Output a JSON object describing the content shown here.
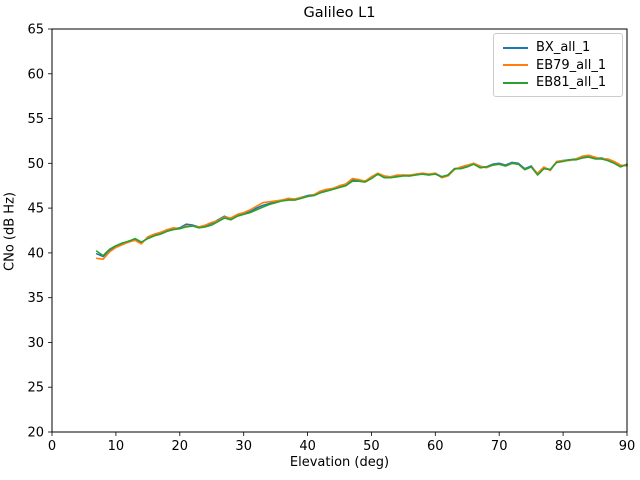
{
  "chart_data": {
    "type": "line",
    "title": "Galileo L1",
    "xlabel": "Elevation (deg)",
    "ylabel": "CNo (dB Hz)",
    "xlim": [
      0,
      90
    ],
    "ylim": [
      20,
      65
    ],
    "xticks": [
      0,
      10,
      20,
      30,
      40,
      50,
      60,
      70,
      80,
      90
    ],
    "yticks": [
      20,
      25,
      30,
      35,
      40,
      45,
      50,
      55,
      60,
      65
    ],
    "grid": false,
    "legend_position": "upper right",
    "x": [
      7,
      8,
      9,
      10,
      11,
      12,
      13,
      14,
      15,
      16,
      17,
      18,
      19,
      20,
      21,
      22,
      23,
      24,
      25,
      26,
      27,
      28,
      29,
      30,
      31,
      32,
      33,
      34,
      35,
      36,
      37,
      38,
      39,
      40,
      41,
      42,
      43,
      44,
      45,
      46,
      47,
      48,
      49,
      50,
      51,
      52,
      53,
      54,
      55,
      56,
      57,
      58,
      59,
      60,
      61,
      62,
      63,
      64,
      65,
      66,
      67,
      68,
      69,
      70,
      71,
      72,
      73,
      74,
      75,
      76,
      77,
      78,
      79,
      80,
      81,
      82,
      83,
      84,
      85,
      86,
      87,
      88,
      89,
      90
    ],
    "series": [
      {
        "name": "BX_all_1",
        "color": "#1f77b4",
        "values": [
          39.9,
          39.6,
          40.3,
          40.7,
          41.0,
          41.3,
          41.5,
          41.1,
          41.7,
          42.0,
          42.2,
          42.5,
          42.7,
          42.8,
          43.2,
          43.1,
          42.9,
          43.0,
          43.3,
          43.7,
          44.1,
          43.8,
          44.2,
          44.4,
          44.6,
          45.0,
          45.3,
          45.5,
          45.7,
          45.9,
          46.0,
          46.0,
          46.2,
          46.4,
          46.5,
          46.8,
          47.0,
          47.2,
          47.4,
          47.6,
          48.1,
          48.1,
          48.0,
          48.4,
          48.8,
          48.5,
          48.5,
          48.6,
          48.7,
          48.6,
          48.8,
          48.8,
          48.7,
          48.9,
          48.5,
          48.7,
          49.4,
          49.5,
          49.7,
          50.0,
          49.6,
          49.6,
          49.9,
          50.0,
          49.8,
          50.1,
          50.0,
          49.4,
          49.7,
          48.8,
          49.5,
          49.3,
          50.2,
          50.3,
          50.4,
          50.5,
          50.7,
          50.8,
          50.6,
          50.6,
          50.4,
          50.1,
          49.7,
          49.8
        ]
      },
      {
        "name": "EB79_all_1",
        "color": "#ff7f0e",
        "values": [
          39.4,
          39.3,
          40.1,
          40.6,
          40.9,
          41.2,
          41.4,
          41.0,
          41.8,
          42.1,
          42.3,
          42.6,
          42.8,
          42.7,
          43.0,
          43.0,
          42.9,
          43.1,
          43.4,
          43.6,
          44.0,
          43.9,
          44.3,
          44.5,
          44.8,
          45.2,
          45.6,
          45.7,
          45.8,
          45.9,
          46.1,
          46.0,
          46.2,
          46.3,
          46.5,
          46.9,
          47.1,
          47.2,
          47.5,
          47.7,
          48.3,
          48.2,
          48.0,
          48.5,
          48.9,
          48.6,
          48.5,
          48.7,
          48.7,
          48.7,
          48.8,
          48.9,
          48.8,
          48.9,
          48.4,
          48.6,
          49.3,
          49.6,
          49.8,
          50.0,
          49.7,
          49.5,
          49.8,
          49.9,
          49.7,
          50.0,
          49.9,
          49.3,
          49.6,
          48.9,
          49.6,
          49.2,
          50.2,
          50.3,
          50.3,
          50.5,
          50.8,
          50.9,
          50.7,
          50.5,
          50.5,
          50.2,
          49.8,
          49.7
        ]
      },
      {
        "name": "EB81_all_1",
        "color": "#2ca02c",
        "values": [
          40.2,
          39.7,
          40.4,
          40.8,
          41.1,
          41.3,
          41.6,
          41.2,
          41.6,
          41.9,
          42.1,
          42.4,
          42.6,
          42.7,
          42.9,
          43.0,
          42.8,
          42.9,
          43.1,
          43.5,
          43.9,
          43.7,
          44.1,
          44.3,
          44.5,
          44.8,
          45.1,
          45.4,
          45.6,
          45.8,
          45.9,
          45.9,
          46.1,
          46.3,
          46.4,
          46.7,
          46.9,
          47.1,
          47.3,
          47.5,
          48.0,
          48.0,
          47.9,
          48.3,
          48.8,
          48.4,
          48.4,
          48.5,
          48.6,
          48.6,
          48.7,
          48.8,
          48.7,
          48.8,
          48.5,
          48.7,
          49.4,
          49.4,
          49.6,
          49.9,
          49.5,
          49.6,
          49.8,
          49.9,
          49.7,
          50.0,
          49.9,
          49.3,
          49.6,
          48.7,
          49.4,
          49.3,
          50.1,
          50.2,
          50.4,
          50.4,
          50.6,
          50.7,
          50.5,
          50.5,
          50.3,
          50.0,
          49.6,
          49.9
        ]
      }
    ]
  }
}
